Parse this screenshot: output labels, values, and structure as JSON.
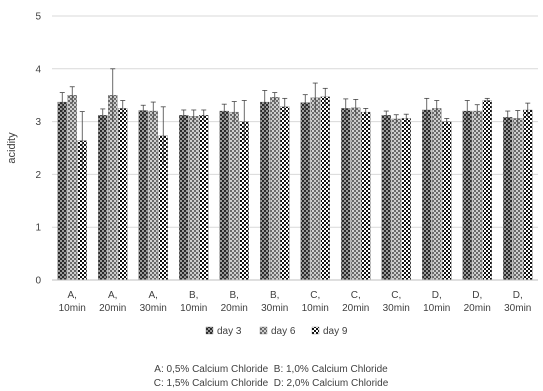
{
  "chart_data": {
    "type": "bar",
    "ylabel": "acidity",
    "ylim": [
      0,
      5
    ],
    "yticks": [
      0,
      1,
      2,
      3,
      4,
      5
    ],
    "grid": true,
    "legend_position": "bottom",
    "categories": [
      [
        "A,",
        "10min"
      ],
      [
        "A,",
        "20min"
      ],
      [
        "A,",
        "30min"
      ],
      [
        "B,",
        "10min"
      ],
      [
        "B,",
        "20min"
      ],
      [
        "B,",
        "30min"
      ],
      [
        "C,",
        "10min"
      ],
      [
        "C,",
        "20min"
      ],
      [
        "C,",
        "30min"
      ],
      [
        "D,",
        "10min"
      ],
      [
        "D,",
        "20min"
      ],
      [
        "D,",
        "30min"
      ]
    ],
    "series": [
      {
        "name": "day 3",
        "pattern": "dark-checker",
        "values": [
          3.37,
          3.12,
          3.21,
          3.12,
          3.2,
          3.37,
          3.36,
          3.25,
          3.12,
          3.22,
          3.2,
          3.08
        ],
        "errors": [
          0.18,
          0.12,
          0.1,
          0.1,
          0.13,
          0.22,
          0.15,
          0.18,
          0.08,
          0.22,
          0.2,
          0.12
        ]
      },
      {
        "name": "day 6",
        "pattern": "light-checker",
        "values": [
          3.5,
          3.5,
          3.2,
          3.1,
          3.18,
          3.46,
          3.45,
          3.26,
          3.05,
          3.25,
          3.2,
          3.06
        ],
        "errors": [
          0.16,
          0.5,
          0.17,
          0.12,
          0.2,
          0.09,
          0.28,
          0.16,
          0.08,
          0.15,
          0.12,
          0.15
        ]
      },
      {
        "name": "day 9",
        "pattern": "checker",
        "values": [
          2.64,
          3.25,
          2.73,
          3.12,
          3.0,
          3.28,
          3.47,
          3.18,
          3.06,
          3.0,
          3.4,
          3.22
        ],
        "errors": [
          0.55,
          0.15,
          0.55,
          0.1,
          0.4,
          0.16,
          0.16,
          0.07,
          0.08,
          0.06,
          0.04,
          0.13
        ]
      }
    ],
    "notes": [
      "A: 0,5% Calcium Chloride  B: 1,0% Calcium Chloride",
      "C: 1,5% Calcium Chloride  D: 2,0% Calcium Chloride"
    ]
  }
}
